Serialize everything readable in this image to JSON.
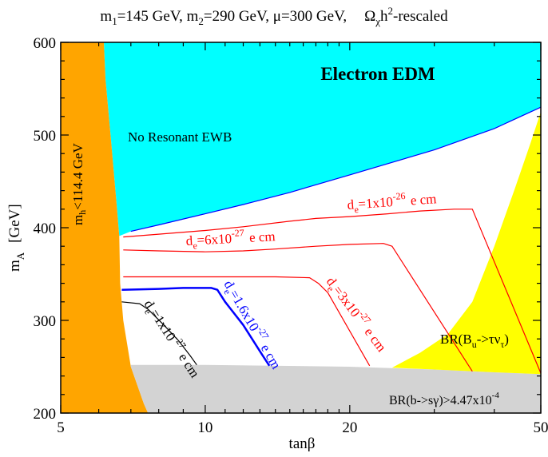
{
  "chart_data": {
    "type": "line",
    "title_parts": {
      "m1": "m",
      "m1_sub": "1",
      "m1_val": "=145 GeV, m",
      "m2_sub": "2",
      "m2_val": "=290 GeV, μ=300 GeV,",
      "omega": "Ω",
      "omega_sub": "χ",
      "h": "h",
      "h_sup": "2",
      "rescaled": "-rescaled"
    },
    "xlabel": "tanβ",
    "ylabel_main": "m",
    "ylabel_sub": "A",
    "ylabel_unit": "[GeV]",
    "x_scale": "log",
    "xlim": [
      5,
      50
    ],
    "ylim": [
      200,
      600
    ],
    "x_ticks": [
      {
        "value": 5,
        "label": "5"
      },
      {
        "value": 10,
        "label": "10"
      },
      {
        "value": 20,
        "label": "20"
      },
      {
        "value": 50,
        "label": "50"
      }
    ],
    "y_ticks": [
      {
        "value": 200,
        "label": "200"
      },
      {
        "value": 300,
        "label": "300"
      },
      {
        "value": 400,
        "label": "400"
      },
      {
        "value": 500,
        "label": "500"
      },
      {
        "value": 600,
        "label": "600"
      }
    ],
    "regions": [
      {
        "name": "no-resonant-ewb",
        "color": "#00ffff",
        "points": [
          [
            6.15,
            600
          ],
          [
            50,
            600
          ],
          [
            50,
            530
          ],
          [
            40,
            507
          ],
          [
            30,
            484
          ],
          [
            20,
            457
          ],
          [
            15,
            438
          ],
          [
            12,
            425
          ],
          [
            10,
            415
          ],
          [
            8,
            403
          ],
          [
            7,
            396
          ],
          [
            6.62,
            391
          ],
          [
            6.55,
            420
          ],
          [
            6.35,
            500
          ],
          [
            6.2,
            560
          ],
          [
            6.15,
            600
          ]
        ]
      },
      {
        "name": "higgs-mass-excluded",
        "color": "#ffa500",
        "points": [
          [
            5,
            200
          ],
          [
            5,
            600
          ],
          [
            6.15,
            600
          ],
          [
            6.2,
            560
          ],
          [
            6.35,
            500
          ],
          [
            6.55,
            420
          ],
          [
            6.62,
            391
          ],
          [
            6.65,
            340
          ],
          [
            6.75,
            300
          ],
          [
            7.0,
            250
          ],
          [
            7.45,
            210
          ],
          [
            7.6,
            200
          ]
        ]
      },
      {
        "name": "b-to-s-gamma-excluded",
        "color": "#d3d3d3",
        "points": [
          [
            7.0,
            252
          ],
          [
            10,
            252
          ],
          [
            20,
            250
          ],
          [
            30,
            247
          ],
          [
            40,
            244
          ],
          [
            50,
            242
          ],
          [
            50,
            200
          ],
          [
            7.6,
            200
          ],
          [
            7.45,
            210
          ],
          [
            7.0,
            250
          ]
        ]
      },
      {
        "name": "bu-to-tau-nu-excluded",
        "color": "#ffff00",
        "points": [
          [
            24.5,
            249
          ],
          [
            28,
            265
          ],
          [
            32,
            285
          ],
          [
            36,
            320
          ],
          [
            40,
            380
          ],
          [
            44,
            440
          ],
          [
            47.5,
            490
          ],
          [
            50,
            525
          ],
          [
            50,
            242
          ],
          [
            40,
            244
          ],
          [
            30,
            247
          ],
          [
            24.5,
            249
          ]
        ]
      }
    ],
    "series": [
      {
        "name": "de=1x10^-26",
        "color": "#ff0000",
        "width": 1.2,
        "points": [
          [
            6.75,
            390
          ],
          [
            8,
            393
          ],
          [
            10,
            397
          ],
          [
            12,
            401
          ],
          [
            15,
            407
          ],
          [
            17,
            410
          ],
          [
            20,
            412
          ],
          [
            24,
            415
          ],
          [
            28,
            418
          ],
          [
            33,
            420
          ],
          [
            36,
            420
          ],
          [
            50,
            243
          ]
        ]
      },
      {
        "name": "de=6x10^-27",
        "color": "#ff0000",
        "width": 1.2,
        "points": [
          [
            6.75,
            376
          ],
          [
            8,
            375
          ],
          [
            10,
            374
          ],
          [
            12,
            375
          ],
          [
            14,
            377
          ],
          [
            17,
            380
          ],
          [
            20,
            382
          ],
          [
            23.5,
            383
          ],
          [
            24.5,
            380
          ],
          [
            36,
            245
          ]
        ]
      },
      {
        "name": "de=3x10^-27",
        "color": "#ff0000",
        "width": 1.2,
        "points": [
          [
            6.75,
            347
          ],
          [
            9,
            347
          ],
          [
            12,
            347
          ],
          [
            14,
            347
          ],
          [
            16.5,
            346
          ],
          [
            17.2,
            340
          ],
          [
            18,
            330
          ],
          [
            22,
            251
          ]
        ]
      },
      {
        "name": "de=1.6x10^-27",
        "color": "#0000ff",
        "width": 2.5,
        "points": [
          [
            6.7,
            333
          ],
          [
            8,
            334
          ],
          [
            9,
            335
          ],
          [
            10.3,
            335
          ],
          [
            10.6,
            333
          ],
          [
            11,
            320
          ],
          [
            12,
            295
          ],
          [
            13.1,
            264
          ],
          [
            13.6,
            251
          ]
        ]
      },
      {
        "name": "de=1x10^-27",
        "color": "#000000",
        "width": 1.2,
        "points": [
          [
            6.7,
            320
          ],
          [
            7.3,
            318
          ],
          [
            7.6,
            312
          ],
          [
            8.2,
            295
          ],
          [
            8.8,
            278
          ],
          [
            9.3,
            262
          ],
          [
            9.6,
            252
          ]
        ]
      }
    ],
    "labels": {
      "electron_edm": "Electron EDM",
      "no_resonant_ewb": "No Resonant EWB",
      "mh_main": "m",
      "mh_sub": "h",
      "mh_rest": "<114.4 GeV",
      "de_1e26": {
        "d": "d",
        "sub": "e",
        "val": "=1x10",
        "exp": "-26",
        "unit": "e cm"
      },
      "de_6e27": {
        "d": "d",
        "sub": "e",
        "val": "=6x10",
        "exp": "-27",
        "unit": "e cm"
      },
      "de_3e27": {
        "d": "d",
        "sub": "e",
        "val": "=3x10",
        "exp": "-27",
        "unit": "e cm"
      },
      "de_16e27": {
        "d": "d",
        "sub": "e",
        "val": "=1.6x10",
        "exp": "-27",
        "unit": "e cm"
      },
      "de_1e27": {
        "d": "d",
        "sub": "e",
        "val": "=1x10",
        "exp": "-27",
        "unit": "e cm"
      },
      "br_bu": {
        "pre": "BR(B",
        "sub1": "u",
        "mid": "->τν",
        "sub2": "τ",
        "post": ")"
      },
      "br_bsg": {
        "text": "BR(b->sγ)>4.47x10",
        "exp": "-4"
      }
    },
    "grid": false,
    "legend": "none"
  }
}
